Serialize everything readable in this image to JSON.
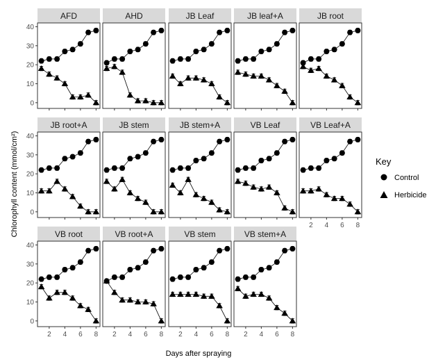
{
  "chart_data": {
    "type": "line",
    "xlabel": "Days after spraying",
    "ylabel": "Chlorophyll content (mmol/cm²)",
    "xlim": [
      0.5,
      8.5
    ],
    "ylim": [
      -3,
      42
    ],
    "x_ticks": [
      2,
      4,
      6,
      8
    ],
    "y_ticks": [
      0,
      10,
      20,
      30,
      40
    ],
    "x": [
      1,
      2,
      3,
      4,
      5,
      6,
      7,
      8
    ],
    "legend": {
      "title": "Key",
      "position": "right",
      "entries": [
        {
          "label": "Control",
          "marker": "circle"
        },
        {
          "label": "Herbicide",
          "marker": "triangle"
        }
      ]
    },
    "panels": [
      {
        "title": "AFD",
        "series": [
          {
            "name": "Control",
            "values": [
              22,
              23,
              23,
              27,
              28,
              31,
              37,
              38
            ]
          },
          {
            "name": "Herbicide",
            "values": [
              18,
              15,
              13,
              10,
              3,
              3,
              4,
              0
            ]
          }
        ]
      },
      {
        "title": "AHD",
        "series": [
          {
            "name": "Control",
            "values": [
              21,
              23,
              23,
              27,
              28,
              31,
              37,
              38
            ]
          },
          {
            "name": "Herbicide",
            "values": [
              18,
              19,
              16,
              4,
              1,
              1,
              0,
              0
            ]
          }
        ]
      },
      {
        "title": "JB Leaf",
        "series": [
          {
            "name": "Control",
            "values": [
              22,
              23,
              23,
              27,
              28,
              31,
              37,
              38
            ]
          },
          {
            "name": "Herbicide",
            "values": [
              14,
              10,
              13,
              13,
              12,
              10,
              3,
              0
            ]
          }
        ]
      },
      {
        "title": "JB leaf+A",
        "series": [
          {
            "name": "Control",
            "values": [
              22,
              23,
              23,
              27,
              28,
              31,
              37,
              38
            ]
          },
          {
            "name": "Herbicide",
            "values": [
              16,
              15,
              14,
              14,
              12,
              9,
              6,
              0
            ]
          }
        ]
      },
      {
        "title": "JB root",
        "series": [
          {
            "name": "Control",
            "values": [
              21,
              23,
              23,
              27,
              28,
              31,
              37,
              38
            ]
          },
          {
            "name": "Herbicide",
            "values": [
              19,
              17,
              18,
              14,
              12,
              9,
              3,
              0
            ]
          }
        ]
      },
      {
        "title": "JB root+A",
        "series": [
          {
            "name": "Control",
            "values": [
              22,
              23,
              23,
              28,
              29,
              31,
              37,
              38
            ]
          },
          {
            "name": "Herbicide",
            "values": [
              11,
              11,
              16,
              12,
              8,
              3,
              0,
              0
            ]
          }
        ]
      },
      {
        "title": "JB stem",
        "series": [
          {
            "name": "Control",
            "values": [
              22,
              23,
              23,
              28,
              29,
              31,
              37,
              38
            ]
          },
          {
            "name": "Herbicide",
            "values": [
              16,
              12,
              17,
              10,
              7,
              5,
              0,
              0
            ]
          }
        ]
      },
      {
        "title": "JB stem+A",
        "series": [
          {
            "name": "Control",
            "values": [
              22,
              23,
              23,
              27,
              28,
              31,
              37,
              38
            ]
          },
          {
            "name": "Herbicide",
            "values": [
              14,
              10,
              17,
              9,
              7,
              5,
              1,
              0
            ]
          }
        ]
      },
      {
        "title": "VB Leaf",
        "series": [
          {
            "name": "Control",
            "values": [
              22,
              23,
              23,
              27,
              28,
              31,
              37,
              38
            ]
          },
          {
            "name": "Herbicide",
            "values": [
              16,
              15,
              13,
              12,
              13,
              10,
              2,
              0
            ]
          }
        ]
      },
      {
        "title": "VB Leaf+A",
        "series": [
          {
            "name": "Control",
            "values": [
              22,
              23,
              23,
              27,
              28,
              31,
              37,
              38
            ]
          },
          {
            "name": "Herbicide",
            "values": [
              11,
              11,
              12,
              9,
              7,
              7,
              4,
              0
            ]
          }
        ]
      },
      {
        "title": "VB root",
        "series": [
          {
            "name": "Control",
            "values": [
              22,
              23,
              23,
              27,
              28,
              31,
              37,
              38
            ]
          },
          {
            "name": "Herbicide",
            "values": [
              18,
              12,
              15,
              15,
              12,
              8,
              6,
              0
            ]
          }
        ]
      },
      {
        "title": "VB root+A",
        "series": [
          {
            "name": "Control",
            "values": [
              21,
              23,
              23,
              27,
              28,
              31,
              37,
              38
            ]
          },
          {
            "name": "Herbicide",
            "values": [
              21,
              15,
              11,
              11,
              10,
              10,
              9,
              0
            ]
          }
        ]
      },
      {
        "title": "VB stem",
        "series": [
          {
            "name": "Control",
            "values": [
              22,
              23,
              23,
              27,
              28,
              31,
              37,
              38
            ]
          },
          {
            "name": "Herbicide",
            "values": [
              14,
              14,
              14,
              14,
              13,
              13,
              8,
              0
            ]
          }
        ]
      },
      {
        "title": "VB stem+A",
        "series": [
          {
            "name": "Control",
            "values": [
              22,
              23,
              23,
              27,
              28,
              31,
              37,
              38
            ]
          },
          {
            "name": "Herbicide",
            "values": [
              17,
              13,
              14,
              14,
              12,
              7,
              4,
              0
            ]
          }
        ]
      }
    ]
  }
}
